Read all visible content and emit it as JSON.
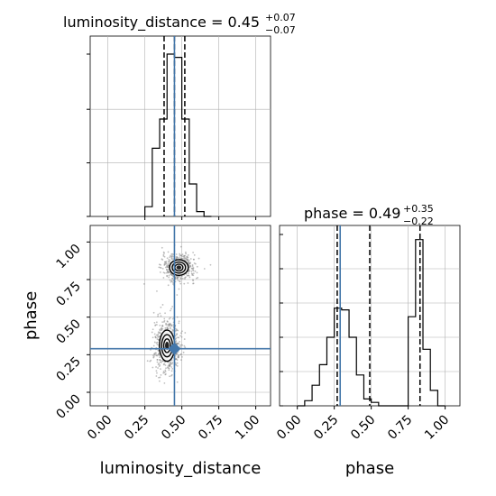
{
  "chart_data": {
    "type": "corner",
    "colors": {
      "truth": "#4477aa",
      "hist": "#000000",
      "grid": "#b0b0b0",
      "samples": "#808080"
    },
    "parameters": [
      "luminosity_distance",
      "phase"
    ],
    "truth": {
      "luminosity_distance": 0.45,
      "phase": 0.29
    },
    "tick_values": [
      0.0,
      0.25,
      0.5,
      0.75,
      1.0
    ],
    "tick_labels": [
      "0.00",
      "0.25",
      "0.50",
      "0.75",
      "1.00"
    ],
    "xlim": [
      -0.12,
      1.1
    ],
    "phase_ylim": [
      -0.09,
      1.11
    ],
    "panels": {
      "lum_hist": {
        "title_main": "luminosity_distance = 0.45",
        "title_sup": "+0.07",
        "title_sub": "−0.07",
        "bin_edges": [
          0.25,
          0.3,
          0.35,
          0.4,
          0.45,
          0.5,
          0.55,
          0.6,
          0.65,
          0.7
        ],
        "counts": [
          0.06,
          0.42,
          0.6,
          1.0,
          0.98,
          0.6,
          0.2,
          0.03,
          0.0
        ],
        "quantiles": [
          0.38,
          0.45,
          0.52
        ]
      },
      "phase_hist": {
        "title_main": "phase = 0.49",
        "title_sup": "+0.35",
        "title_sub": "−0.22",
        "bin_edges": [
          0.0,
          0.05,
          0.1,
          0.15,
          0.2,
          0.25,
          0.3,
          0.35,
          0.4,
          0.45,
          0.5,
          0.55,
          0.6,
          0.65,
          0.7,
          0.75,
          0.8,
          0.85,
          0.9,
          0.95,
          1.0
        ],
        "counts": [
          0.0,
          0.03,
          0.12,
          0.24,
          0.4,
          0.57,
          0.56,
          0.4,
          0.18,
          0.04,
          0.02,
          0.0,
          0.0,
          0.0,
          0.0,
          0.52,
          0.97,
          0.33,
          0.09,
          0.0
        ],
        "quantiles": [
          0.27,
          0.49,
          0.83
        ]
      },
      "joint": {
        "xlabel": "luminosity_distance",
        "ylabel": "phase",
        "blobs": [
          {
            "center": [
              0.48,
              0.83
            ],
            "spread": [
              0.055,
              0.045
            ]
          },
          {
            "center": [
              0.4,
              0.31
            ],
            "spread": [
              0.045,
              0.09
            ]
          }
        ]
      }
    },
    "phase_xlabel": "phase"
  }
}
